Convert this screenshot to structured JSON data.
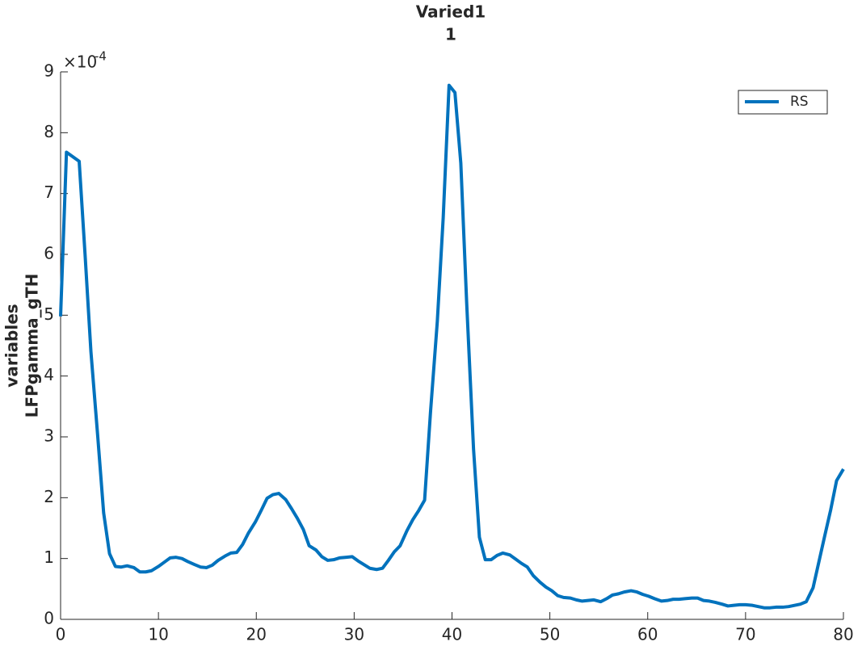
{
  "chart_data": {
    "type": "line",
    "title": "Varied1",
    "subtitle": "1",
    "ylabel_lines": [
      "variables",
      "LFPgamma_gTH"
    ],
    "y_multiplier_base": "×10",
    "y_multiplier_exponent": "-4",
    "legend_position": "northeast",
    "x": [
      0,
      0.6,
      1.9,
      2.5,
      3.1,
      3.8,
      4.4,
      5.0,
      5.6,
      6.2,
      6.8,
      7.5,
      8.1,
      8.7,
      9.3,
      10.0,
      10.6,
      11.2,
      11.8,
      12.4,
      13.0,
      13.7,
      14.3,
      14.9,
      15.5,
      16.1,
      16.8,
      17.4,
      18.0,
      18.6,
      19.2,
      19.9,
      20.5,
      21.1,
      21.7,
      22.3,
      23.0,
      23.6,
      24.2,
      24.8,
      25.4,
      26.1,
      26.7,
      27.3,
      27.9,
      28.5,
      29.2,
      29.8,
      30.4,
      31.0,
      31.6,
      32.3,
      32.9,
      33.5,
      34.1,
      34.7,
      35.4,
      36.0,
      36.6,
      37.2,
      37.8,
      38.5,
      39.1,
      39.7,
      40.3,
      40.9,
      41.5,
      42.2,
      42.8,
      43.4,
      44.0,
      44.6,
      45.2,
      45.9,
      46.5,
      47.1,
      47.7,
      48.3,
      49.0,
      49.6,
      50.2,
      50.8,
      51.4,
      52.1,
      52.7,
      53.3,
      53.9,
      54.5,
      55.2,
      55.8,
      56.4,
      57.0,
      57.6,
      58.3,
      58.9,
      59.5,
      60.1,
      60.7,
      61.4,
      62.0,
      62.6,
      63.2,
      63.8,
      64.5,
      65.1,
      65.7,
      66.3,
      66.9,
      67.6,
      68.2,
      68.8,
      69.4,
      70.0,
      70.7,
      71.3,
      71.9,
      72.5,
      73.1,
      73.8,
      74.4,
      75.0,
      75.6,
      76.2,
      76.9,
      77.5,
      78.1,
      78.7,
      79.3,
      80
    ],
    "series": [
      {
        "name": "RS",
        "color": "#0072BD",
        "values": [
          4.98,
          7.68,
          7.53,
          6.0,
          4.4,
          3.0,
          1.75,
          1.08,
          0.87,
          0.86,
          0.88,
          0.85,
          0.78,
          0.78,
          0.8,
          0.87,
          0.94,
          1.01,
          1.02,
          1.0,
          0.95,
          0.9,
          0.86,
          0.85,
          0.89,
          0.97,
          1.04,
          1.09,
          1.1,
          1.23,
          1.42,
          1.6,
          1.79,
          1.99,
          2.05,
          2.07,
          1.97,
          1.82,
          1.66,
          1.48,
          1.21,
          1.14,
          1.03,
          0.97,
          0.98,
          1.01,
          1.02,
          1.03,
          0.96,
          0.9,
          0.84,
          0.82,
          0.84,
          0.97,
          1.11,
          1.21,
          1.46,
          1.64,
          1.79,
          1.96,
          3.4,
          4.9,
          6.6,
          8.78,
          8.66,
          7.5,
          5.2,
          2.8,
          1.35,
          0.98,
          0.98,
          1.05,
          1.09,
          1.06,
          0.99,
          0.92,
          0.86,
          0.72,
          0.61,
          0.53,
          0.47,
          0.39,
          0.36,
          0.35,
          0.32,
          0.3,
          0.31,
          0.32,
          0.29,
          0.34,
          0.4,
          0.42,
          0.45,
          0.47,
          0.45,
          0.41,
          0.38,
          0.34,
          0.3,
          0.31,
          0.33,
          0.33,
          0.34,
          0.35,
          0.35,
          0.31,
          0.3,
          0.28,
          0.25,
          0.22,
          0.23,
          0.24,
          0.24,
          0.23,
          0.21,
          0.19,
          0.19,
          0.2,
          0.2,
          0.21,
          0.23,
          0.25,
          0.29,
          0.52,
          0.95,
          1.38,
          1.8,
          2.28,
          2.47
        ]
      }
    ],
    "xlim": [
      0,
      80
    ],
    "xticks": [
      0,
      10,
      20,
      30,
      40,
      50,
      60,
      70,
      80
    ],
    "ylim": [
      0,
      9
    ],
    "yticks": [
      0,
      1,
      2,
      3,
      4,
      5,
      6,
      7,
      8,
      9
    ]
  }
}
